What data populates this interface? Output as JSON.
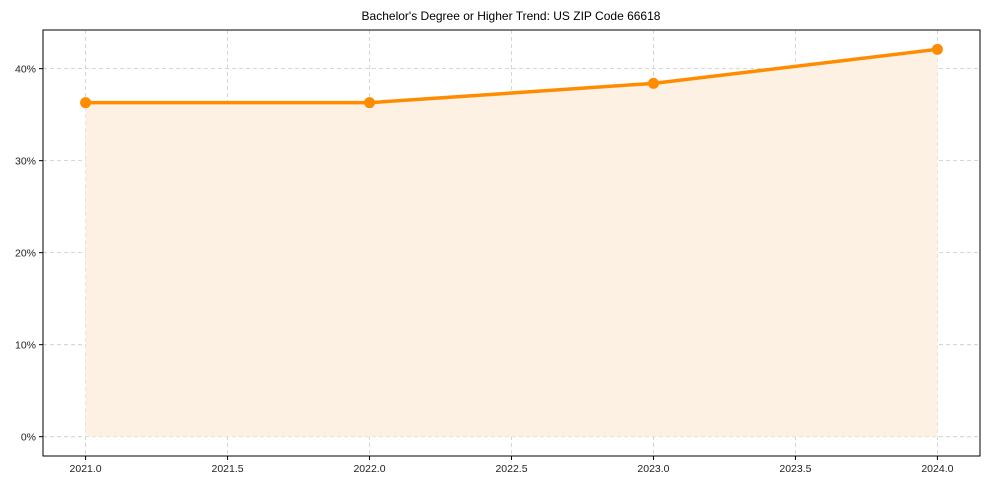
{
  "chart_data": {
    "type": "area",
    "title": "Bachelor's Degree or Higher Trend: US ZIP Code 66618",
    "xlabel": "",
    "ylabel": "",
    "x": [
      2021.0,
      2022.0,
      2023.0,
      2024.0
    ],
    "series": [
      {
        "name": "Bachelor's Degree or Higher",
        "values": [
          36.3,
          36.3,
          38.4,
          42.1
        ],
        "color": "#ff8c00",
        "fill": "#fdf1e4"
      }
    ],
    "x_ticks": [
      "2021.0",
      "2021.5",
      "2022.0",
      "2022.5",
      "2023.0",
      "2023.5",
      "2024.0"
    ],
    "x_tick_values": [
      2021.0,
      2021.5,
      2022.0,
      2022.5,
      2023.0,
      2023.5,
      2024.0
    ],
    "y_ticks": [
      "0%",
      "10%",
      "20%",
      "30%",
      "40%"
    ],
    "y_tick_values": [
      0,
      10,
      20,
      30,
      40
    ],
    "xlim": [
      2020.85,
      2024.15
    ],
    "ylim": [
      -2.1,
      44.2
    ],
    "grid": true,
    "legend": null
  }
}
